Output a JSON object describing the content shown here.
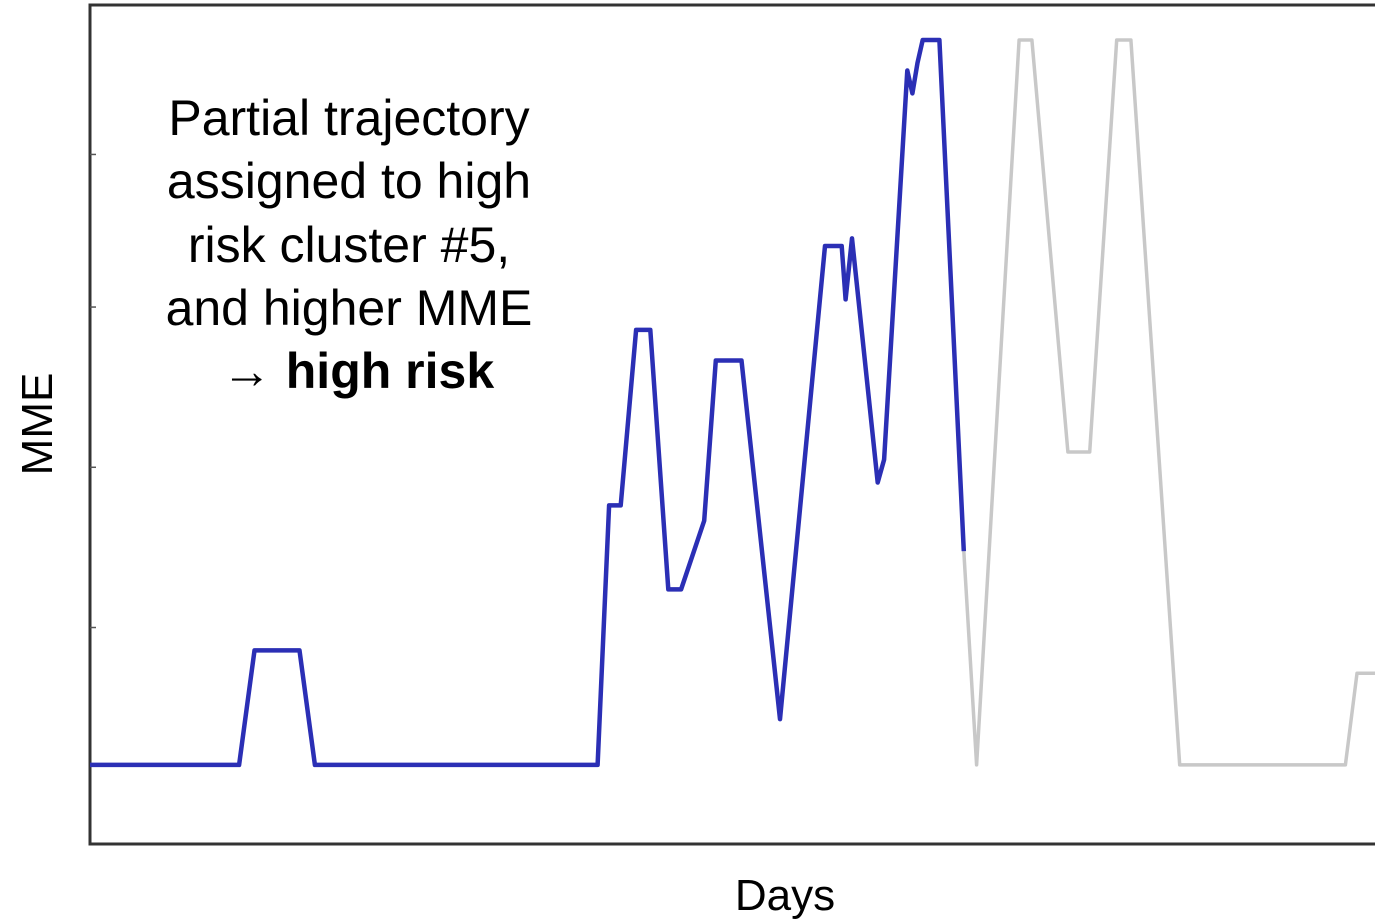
{
  "chart_data": {
    "type": "line",
    "xlabel": "Days",
    "ylabel": "MME",
    "xlim": [
      0,
      100
    ],
    "ylim": [
      0,
      100
    ],
    "grid": false,
    "annotation": {
      "lines": [
        "Partial trajectory",
        "assigned to high",
        "risk cluster #5,",
        "and higher MME"
      ],
      "arrow": "→",
      "emphasis": "high risk"
    },
    "series": [
      {
        "color": "#2b2fb5",
        "points": [
          [
            0,
            5
          ],
          [
            11.6,
            5
          ],
          [
            12.8,
            20
          ],
          [
            16.3,
            20
          ],
          [
            17.5,
            5
          ],
          [
            39.5,
            5
          ],
          [
            40.4,
            39
          ],
          [
            41.3,
            39
          ],
          [
            42.5,
            62
          ],
          [
            43.6,
            62
          ],
          [
            45.0,
            28
          ],
          [
            46.0,
            28
          ],
          [
            47.8,
            37
          ],
          [
            48.7,
            58
          ],
          [
            50.7,
            58
          ],
          [
            53.7,
            11
          ],
          [
            57.2,
            73
          ],
          [
            58.5,
            73
          ],
          [
            58.8,
            66
          ],
          [
            59.3,
            74
          ],
          [
            61.3,
            42
          ],
          [
            61.8,
            45
          ],
          [
            63.6,
            96
          ],
          [
            64.0,
            93
          ],
          [
            64.4,
            97
          ],
          [
            64.8,
            100
          ],
          [
            66.1,
            100
          ],
          [
            68.0,
            33
          ]
        ]
      },
      {
        "color": "#c8c8c8",
        "points": [
          [
            68.0,
            33
          ],
          [
            69.0,
            5
          ],
          [
            72.3,
            100
          ],
          [
            73.3,
            100
          ],
          [
            76.1,
            46
          ],
          [
            77.8,
            46
          ],
          [
            79.9,
            100
          ],
          [
            81.0,
            100
          ],
          [
            84.8,
            5
          ],
          [
            97.7,
            5
          ],
          [
            98.6,
            17
          ],
          [
            100.0,
            17
          ]
        ]
      }
    ]
  }
}
